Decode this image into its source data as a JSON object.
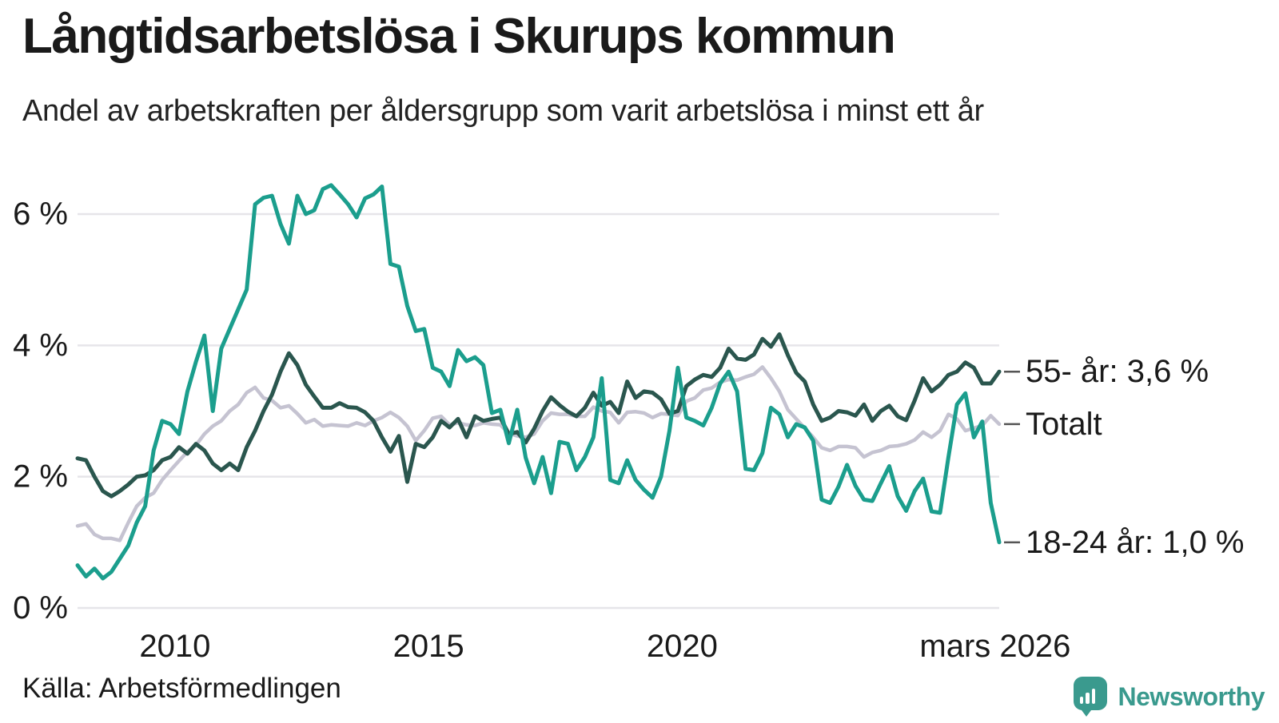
{
  "header": {
    "title": "Långtidsarbetslösa i Skurups kommun",
    "subtitle": "Andel av arbetskraften per åldersgrupp som varit arbetslösa i minst ett år"
  },
  "footer": {
    "source": "Källa: Arbetsförmedlingen",
    "brand_name": "Newsworthy"
  },
  "colors": {
    "brand": "#3a9a8e",
    "text": "#1a1a1a",
    "grid": "#e6e5e9",
    "annotation_dash": "#555555",
    "series_18_24": "#1b9e8d",
    "series_55": "#2a564e",
    "series_total": "#c5c3d1"
  },
  "chart_data": {
    "type": "line",
    "title": "Långtidsarbetslösa i Skurups kommun",
    "subtitle": "Andel av arbetskraften per åldersgrupp som varit arbetslösa i minst ett år",
    "unit": "% av arbetskraften",
    "x_start": 2008.08,
    "x_end": 2026.25,
    "ylim": [
      0,
      6.6
    ],
    "grid": true,
    "legend_position": "right-end-labels",
    "y_ticks": [
      {
        "value": 0,
        "label": "0 %"
      },
      {
        "value": 2,
        "label": "2 %"
      },
      {
        "value": 4,
        "label": "4 %"
      },
      {
        "value": 6,
        "label": "6 %"
      }
    ],
    "x_ticks": [
      {
        "year": 2010,
        "label": "2010"
      },
      {
        "year": 2015,
        "label": "2015"
      },
      {
        "year": 2020,
        "label": "2020"
      },
      {
        "year": 2026.17,
        "label": "mars 2026"
      }
    ],
    "series": [
      {
        "name": "Totalt",
        "end_label": "Totalt",
        "color": "#c5c3d1",
        "stroke_width": 4.5,
        "last_value": 2.8,
        "values": [
          1.25,
          1.28,
          1.12,
          1.06,
          1.06,
          1.03,
          1.3,
          1.55,
          1.68,
          1.75,
          1.95,
          2.1,
          2.24,
          2.38,
          2.48,
          2.65,
          2.77,
          2.85,
          3.0,
          3.1,
          3.28,
          3.36,
          3.2,
          3.16,
          3.05,
          3.08,
          2.96,
          2.82,
          2.87,
          2.77,
          2.79,
          2.78,
          2.77,
          2.82,
          2.78,
          2.85,
          2.9,
          2.98,
          2.9,
          2.77,
          2.55,
          2.7,
          2.89,
          2.92,
          2.79,
          2.82,
          2.79,
          2.78,
          2.82,
          2.8,
          2.79,
          2.66,
          2.62,
          2.6,
          2.65,
          2.85,
          2.97,
          2.95,
          2.95,
          2.92,
          2.92,
          3.06,
          3.0,
          2.98,
          2.82,
          2.98,
          2.99,
          2.97,
          2.9,
          2.96,
          2.95,
          2.93,
          3.15,
          3.2,
          3.32,
          3.35,
          3.44,
          3.48,
          3.47,
          3.52,
          3.56,
          3.67,
          3.5,
          3.3,
          3.02,
          2.88,
          2.74,
          2.6,
          2.44,
          2.4,
          2.46,
          2.46,
          2.44,
          2.3,
          2.37,
          2.4,
          2.46,
          2.47,
          2.5,
          2.56,
          2.68,
          2.6,
          2.7,
          2.95,
          2.88,
          2.7,
          2.74,
          2.78,
          2.93,
          2.8
        ]
      },
      {
        "name": "55- år",
        "end_label": "55- år: 3,6 %",
        "color": "#2a564e",
        "stroke_width": 5,
        "last_value": 3.6,
        "values": [
          2.28,
          2.25,
          2.0,
          1.78,
          1.7,
          1.78,
          1.88,
          2.0,
          2.02,
          2.1,
          2.25,
          2.3,
          2.45,
          2.35,
          2.5,
          2.4,
          2.2,
          2.1,
          2.2,
          2.1,
          2.45,
          2.7,
          3.0,
          3.25,
          3.6,
          3.88,
          3.7,
          3.4,
          3.22,
          3.05,
          3.05,
          3.12,
          3.06,
          3.05,
          2.98,
          2.85,
          2.6,
          2.38,
          2.62,
          1.92,
          2.5,
          2.45,
          2.6,
          2.85,
          2.75,
          2.88,
          2.6,
          2.92,
          2.85,
          2.88,
          2.9,
          2.65,
          2.68,
          2.52,
          2.73,
          3.0,
          3.21,
          3.09,
          2.99,
          2.92,
          3.05,
          3.28,
          3.08,
          3.14,
          2.97,
          3.45,
          3.2,
          3.3,
          3.28,
          3.18,
          2.96,
          3.0,
          3.38,
          3.48,
          3.55,
          3.52,
          3.66,
          3.95,
          3.8,
          3.78,
          3.86,
          4.1,
          3.98,
          4.17,
          3.85,
          3.58,
          3.45,
          3.1,
          2.85,
          2.9,
          3.0,
          2.98,
          2.93,
          3.1,
          2.85,
          3.0,
          3.08,
          2.92,
          2.86,
          3.16,
          3.5,
          3.3,
          3.4,
          3.55,
          3.6,
          3.74,
          3.66,
          3.42,
          3.42,
          3.6
        ]
      },
      {
        "name": "18-24 år",
        "end_label": "18-24 år: 1,0 %",
        "color": "#1b9e8d",
        "stroke_width": 5,
        "last_value": 1.0,
        "values": [
          0.65,
          0.48,
          0.6,
          0.45,
          0.55,
          0.75,
          0.95,
          1.3,
          1.55,
          2.4,
          2.85,
          2.8,
          2.65,
          3.3,
          3.75,
          4.15,
          3.0,
          3.95,
          4.25,
          4.55,
          4.85,
          6.15,
          6.25,
          6.28,
          5.85,
          5.55,
          6.28,
          6.0,
          6.06,
          6.38,
          6.44,
          6.3,
          6.15,
          5.95,
          6.24,
          6.3,
          6.42,
          5.24,
          5.2,
          4.6,
          4.22,
          4.25,
          3.66,
          3.6,
          3.38,
          3.93,
          3.76,
          3.82,
          3.7,
          2.97,
          3.02,
          2.51,
          3.02,
          2.29,
          1.9,
          2.3,
          1.75,
          2.53,
          2.5,
          2.1,
          2.3,
          2.6,
          3.5,
          1.95,
          1.9,
          2.25,
          1.95,
          1.8,
          1.68,
          2.0,
          2.7,
          3.66,
          2.9,
          2.85,
          2.78,
          3.05,
          3.42,
          3.6,
          3.3,
          2.12,
          2.1,
          2.36,
          3.05,
          2.95,
          2.6,
          2.8,
          2.75,
          2.55,
          1.65,
          1.6,
          1.85,
          2.18,
          1.86,
          1.65,
          1.63,
          1.9,
          2.16,
          1.7,
          1.48,
          1.78,
          1.97,
          1.47,
          1.45,
          2.3,
          3.1,
          3.27,
          2.6,
          2.84,
          1.6,
          1.0
        ]
      }
    ]
  }
}
